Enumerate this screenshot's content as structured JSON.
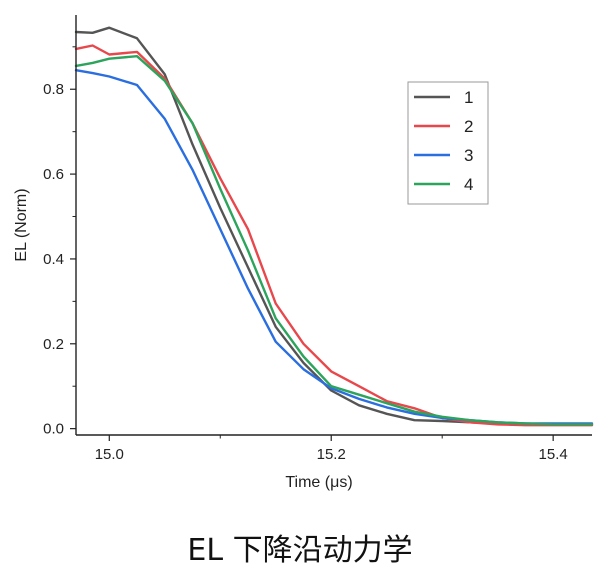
{
  "caption": "EL 下降沿动力学",
  "chart_data": {
    "type": "line",
    "xlabel": "Time (μs)",
    "ylabel": "EL (Norm)",
    "xlim": [
      14.97,
      15.435
    ],
    "ylim": [
      -0.015,
      0.975
    ],
    "xticks": [
      15.0,
      15.2,
      15.4
    ],
    "yticks": [
      0.0,
      0.2,
      0.4,
      0.6,
      0.8
    ],
    "xtick_labels": [
      "15.0",
      "15.2",
      "15.4"
    ],
    "ytick_labels": [
      "0.0",
      "0.2",
      "0.4",
      "0.6",
      "0.8"
    ],
    "legend_position": "top-right",
    "series": [
      {
        "name": "1",
        "color": "#555555",
        "x": [
          14.97,
          14.985,
          15.0,
          15.025,
          15.05,
          15.075,
          15.1,
          15.125,
          15.15,
          15.175,
          15.2,
          15.225,
          15.25,
          15.275,
          15.3,
          15.325,
          15.35,
          15.375,
          15.4,
          15.435
        ],
        "y": [
          0.935,
          0.933,
          0.945,
          0.92,
          0.835,
          0.67,
          0.52,
          0.38,
          0.24,
          0.155,
          0.09,
          0.055,
          0.035,
          0.02,
          0.018,
          0.015,
          0.012,
          0.01,
          0.01,
          0.01
        ]
      },
      {
        "name": "2",
        "color": "#e8474b",
        "x": [
          14.97,
          14.985,
          15.0,
          15.025,
          15.05,
          15.075,
          15.1,
          15.125,
          15.15,
          15.175,
          15.2,
          15.225,
          15.25,
          15.275,
          15.3,
          15.325,
          15.35,
          15.375,
          15.4,
          15.435
        ],
        "y": [
          0.895,
          0.903,
          0.882,
          0.888,
          0.825,
          0.72,
          0.59,
          0.47,
          0.295,
          0.2,
          0.135,
          0.1,
          0.065,
          0.048,
          0.025,
          0.015,
          0.01,
          0.008,
          0.008,
          0.008
        ]
      },
      {
        "name": "3",
        "color": "#2a6ee0",
        "x": [
          14.97,
          14.985,
          15.0,
          15.025,
          15.05,
          15.075,
          15.1,
          15.125,
          15.15,
          15.175,
          15.2,
          15.225,
          15.25,
          15.275,
          15.3,
          15.325,
          15.35,
          15.375,
          15.4,
          15.435
        ],
        "y": [
          0.845,
          0.838,
          0.83,
          0.81,
          0.73,
          0.61,
          0.47,
          0.33,
          0.205,
          0.14,
          0.095,
          0.07,
          0.05,
          0.035,
          0.025,
          0.02,
          0.015,
          0.012,
          0.012,
          0.012
        ]
      },
      {
        "name": "4",
        "color": "#2da45c",
        "x": [
          14.97,
          14.985,
          15.0,
          15.025,
          15.05,
          15.075,
          15.1,
          15.125,
          15.15,
          15.175,
          15.2,
          15.225,
          15.25,
          15.275,
          15.3,
          15.325,
          15.35,
          15.375,
          15.4,
          15.435
        ],
        "y": [
          0.855,
          0.862,
          0.872,
          0.878,
          0.82,
          0.72,
          0.565,
          0.42,
          0.26,
          0.17,
          0.1,
          0.08,
          0.06,
          0.04,
          0.028,
          0.02,
          0.015,
          0.012,
          0.01,
          0.01
        ]
      }
    ]
  }
}
